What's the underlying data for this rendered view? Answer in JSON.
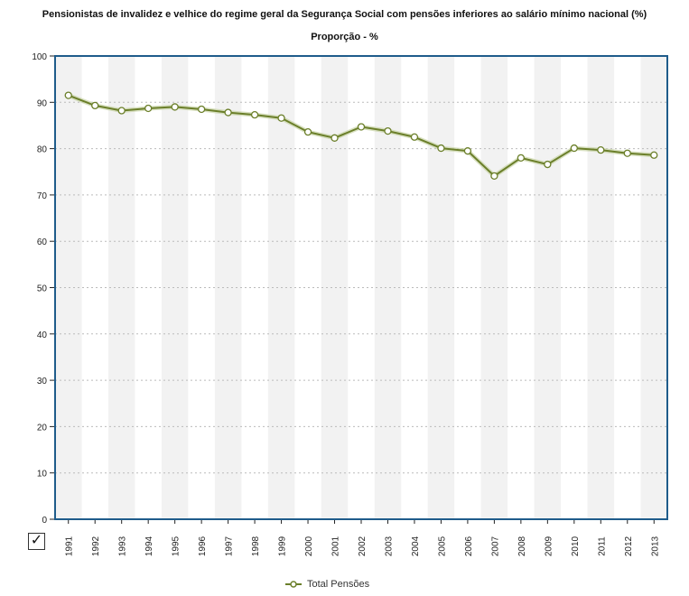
{
  "chart_data": {
    "type": "line",
    "title": "Pensionistas de invalidez e velhice do regime geral da Segurança Social com pensões inferiores ao salário mínimo nacional (%)",
    "subtitle": "Proporção - %",
    "xlabel": "",
    "ylabel": "",
    "ylim": [
      0,
      100
    ],
    "yticks": [
      "0",
      "10",
      "20",
      "30",
      "40",
      "50",
      "60",
      "70",
      "80",
      "90",
      "100"
    ],
    "categories": [
      "1991",
      "1992",
      "1993",
      "1994",
      "1995",
      "1996",
      "1997",
      "1998",
      "1999",
      "2000",
      "2001",
      "2002",
      "2003",
      "2004",
      "2005",
      "2006",
      "2007",
      "2008",
      "2009",
      "2010",
      "2011",
      "2012",
      "2013"
    ],
    "series": [
      {
        "name": "Total Pensões",
        "color": "#6b7f2a",
        "values": [
          91.5,
          89.3,
          88.2,
          88.7,
          89.0,
          88.5,
          87.8,
          87.3,
          86.6,
          83.6,
          82.3,
          84.7,
          83.8,
          82.5,
          80.1,
          79.5,
          74.1,
          78.0,
          76.6,
          80.1,
          79.7,
          79.0,
          78.6
        ]
      }
    ],
    "grid": true,
    "legend_position": "bottom-center",
    "colors": {
      "frame": "#1f5c8b",
      "band": "#f2f2f2",
      "grid": "#bbbbbb"
    }
  }
}
